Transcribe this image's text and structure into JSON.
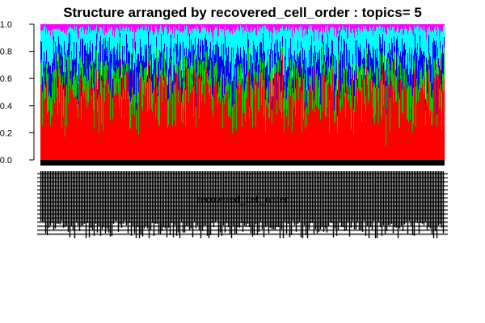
{
  "chart_data": {
    "type": "bar",
    "stacked": true,
    "title": "Structure arranged by recovered_cell_order : topics= 5",
    "xlabel": "recovered_cell_order",
    "ylabel": "",
    "ylim": [
      0,
      1
    ],
    "yticks": [
      "0.0",
      "0.2",
      "0.4",
      "0.6",
      "0.8",
      "1.0"
    ],
    "grid": false,
    "legend": "none",
    "n_samples": 500,
    "series": [
      {
        "name": "",
        "color": "#FF0000",
        "mean": 0.5
      },
      {
        "name": "",
        "color": "#00CD00",
        "mean": 0.15
      },
      {
        "name": "",
        "color": "#0000FF",
        "mean": 0.14
      },
      {
        "name": "",
        "color": "#00FFFF",
        "mean": 0.17
      },
      {
        "name": "",
        "color": "#FF00FF",
        "mean": 0.04
      }
    ]
  }
}
